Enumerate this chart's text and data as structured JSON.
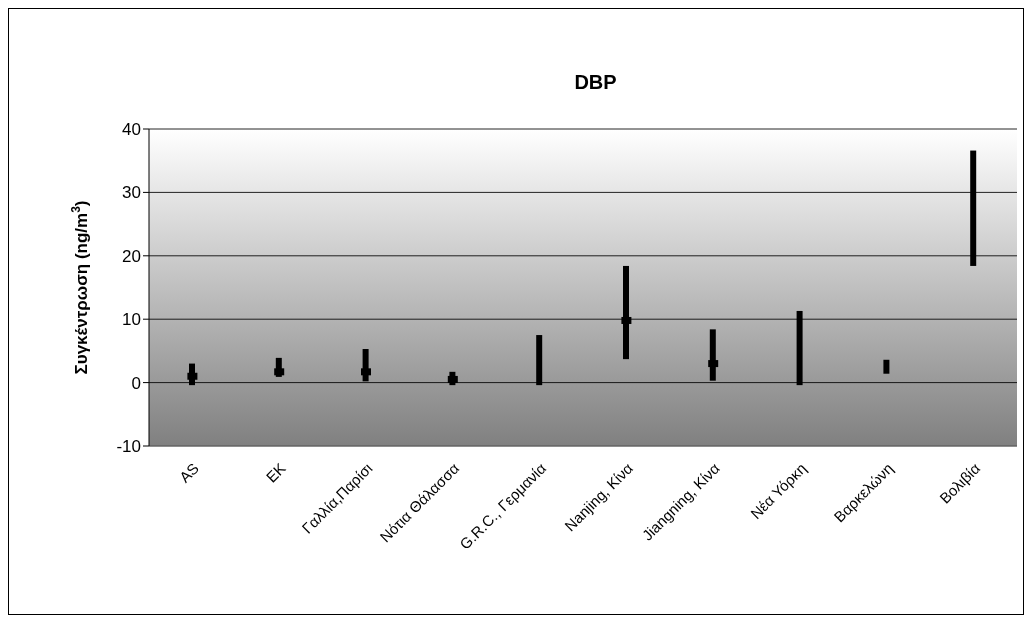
{
  "chart_data": {
    "type": "bar",
    "title": "DBP",
    "ylabel": "Συγκέντρωση (ng/m$^{3}$)",
    "categories": [
      "AS",
      "ΕΚ",
      "Γαλλία,Παρίσι",
      "Νότια Θάλασσα",
      "G.R.C., Γερμανία",
      "Nanjing, Κίνα",
      "Jiangning, Κίνα",
      "Νέα Υόρκη",
      "Βαρκελώνη",
      "Βολιβία"
    ],
    "series": [
      {
        "type": "bar",
        "color": "#000000",
        "base": [
          -0.4,
          0.9,
          0.2,
          -0.4,
          -0.4,
          3.7,
          0.3,
          -0.4,
          1.4,
          18.4
        ],
        "values": [
          3.4,
          3.0,
          5.1,
          2.1,
          7.9,
          14.7,
          8.1,
          11.7,
          2.2,
          18.2
        ]
      },
      {
        "type": "scatter",
        "color": "#000000",
        "marker": "square",
        "values": [
          1.0,
          1.7,
          1.7,
          0.5,
          null,
          9.8,
          3.0,
          null,
          null,
          null
        ]
      }
    ],
    "ylim": [
      -10,
      40
    ],
    "yticks": [
      -10,
      0,
      10,
      20,
      30,
      40
    ],
    "grid": "y",
    "legend": false
  }
}
